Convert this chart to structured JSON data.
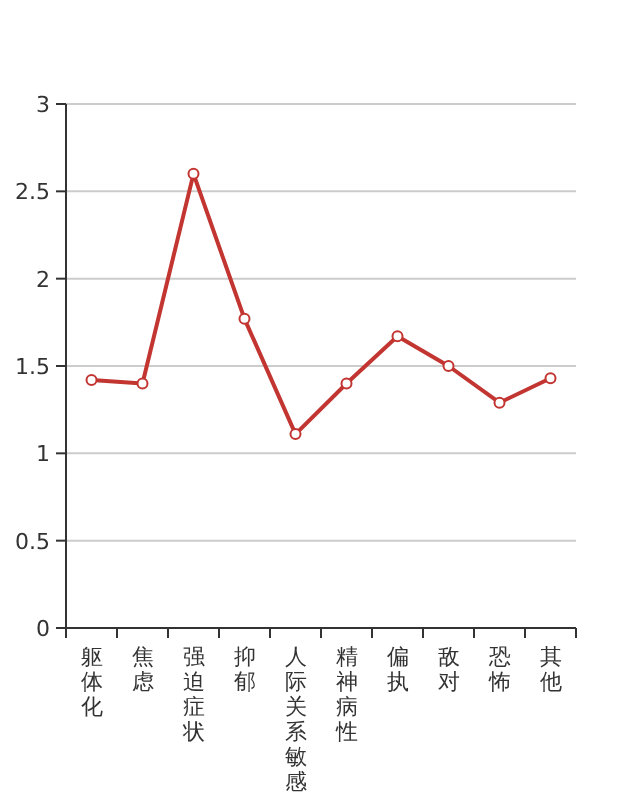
{
  "chart_data": {
    "type": "line",
    "categories": [
      "躯体化",
      "焦虑",
      "强迫症状",
      "抑郁",
      "人际关系敏感",
      "精神病性",
      "偏执",
      "敌对",
      "恐怖",
      "其他"
    ],
    "series": [
      {
        "color": "#c23531",
        "values": [
          1.42,
          1.4,
          2.6,
          1.77,
          1.11,
          1.4,
          1.67,
          1.5,
          1.29,
          1.43
        ]
      }
    ],
    "ylim": [
      0,
      3
    ],
    "yticks": [
      0,
      0.5,
      1,
      1.5,
      2,
      2.5,
      3
    ],
    "grid": "y",
    "marker": "circle",
    "line_style": "solid"
  }
}
